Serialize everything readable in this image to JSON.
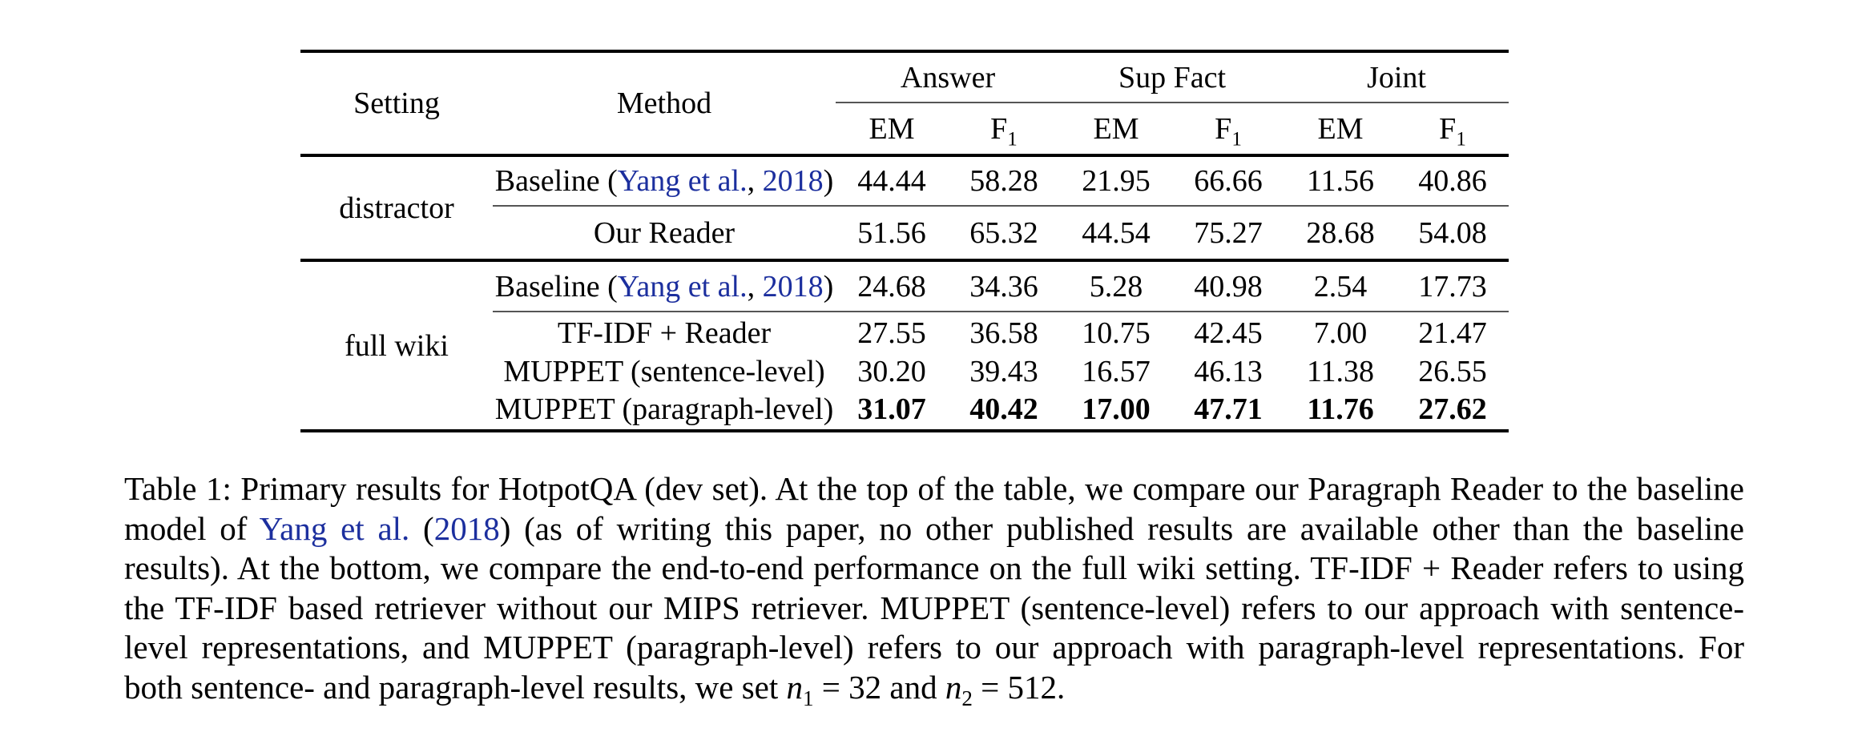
{
  "colors": {
    "citation_blue": "#1c2f9e",
    "text": "#000000",
    "background": "#ffffff",
    "rule_thick": "#000000",
    "rule_thin": "#555555"
  },
  "table": {
    "header": {
      "setting": "Setting",
      "method": "Method",
      "groups": [
        "Answer",
        "Sup Fact",
        "Joint"
      ],
      "em": "EM",
      "f": "F",
      "f_sub": "1"
    },
    "sections": [
      {
        "setting": "distractor",
        "rows": [
          {
            "method_pre": "Baseline (",
            "cite": "Yang et al.",
            "sep": ", ",
            "year": "2018",
            "method_post": ")",
            "values": [
              "44.44",
              "58.28",
              "21.95",
              "66.66",
              "11.56",
              "40.86"
            ]
          },
          {
            "method": "Our Reader",
            "values": [
              "51.56",
              "65.32",
              "44.54",
              "75.27",
              "28.68",
              "54.08"
            ]
          }
        ]
      },
      {
        "setting": "full wiki",
        "rows": [
          {
            "method_pre": "Baseline (",
            "cite": "Yang et al.",
            "sep": ", ",
            "year": "2018",
            "method_post": ")",
            "values": [
              "24.68",
              "34.36",
              "5.28",
              "40.98",
              "2.54",
              "17.73"
            ]
          },
          {
            "method": "TF-IDF + Reader",
            "values": [
              "27.55",
              "36.58",
              "10.75",
              "42.45",
              "7.00",
              "21.47"
            ]
          },
          {
            "method": "MUPPET (sentence-level)",
            "values": [
              "30.20",
              "39.43",
              "16.57",
              "46.13",
              "11.38",
              "26.55"
            ]
          },
          {
            "method": "MUPPET (paragraph-level)",
            "values": [
              "31.07",
              "40.42",
              "17.00",
              "47.71",
              "11.76",
              "27.62"
            ],
            "bold": true
          }
        ]
      }
    ]
  },
  "caption": {
    "part1": "Table 1: Primary results for HotpotQA (dev set). At the top of the table, we compare our Paragraph Reader to the baseline model of ",
    "cite": "Yang et al.",
    "part2": " (",
    "year": "2018",
    "part3": ") (as of writing this paper, no other published results are available other than the baseline results). At the bottom, we compare the end-to-end performance on the full wiki setting. TF-IDF + Reader refers to using the TF-IDF based retriever without our MIPS retriever. MUPPET (sentence-level) refers to our approach with sentence-level representations, and MUPPET (paragraph-level) refers to our approach with paragraph-level representations. For both sentence- and paragraph-level results, we set ",
    "n1": "n",
    "n1_sub": "1",
    "mid": " = 32 and ",
    "n2": "n",
    "n2_sub": "2",
    "end": " = 512."
  }
}
